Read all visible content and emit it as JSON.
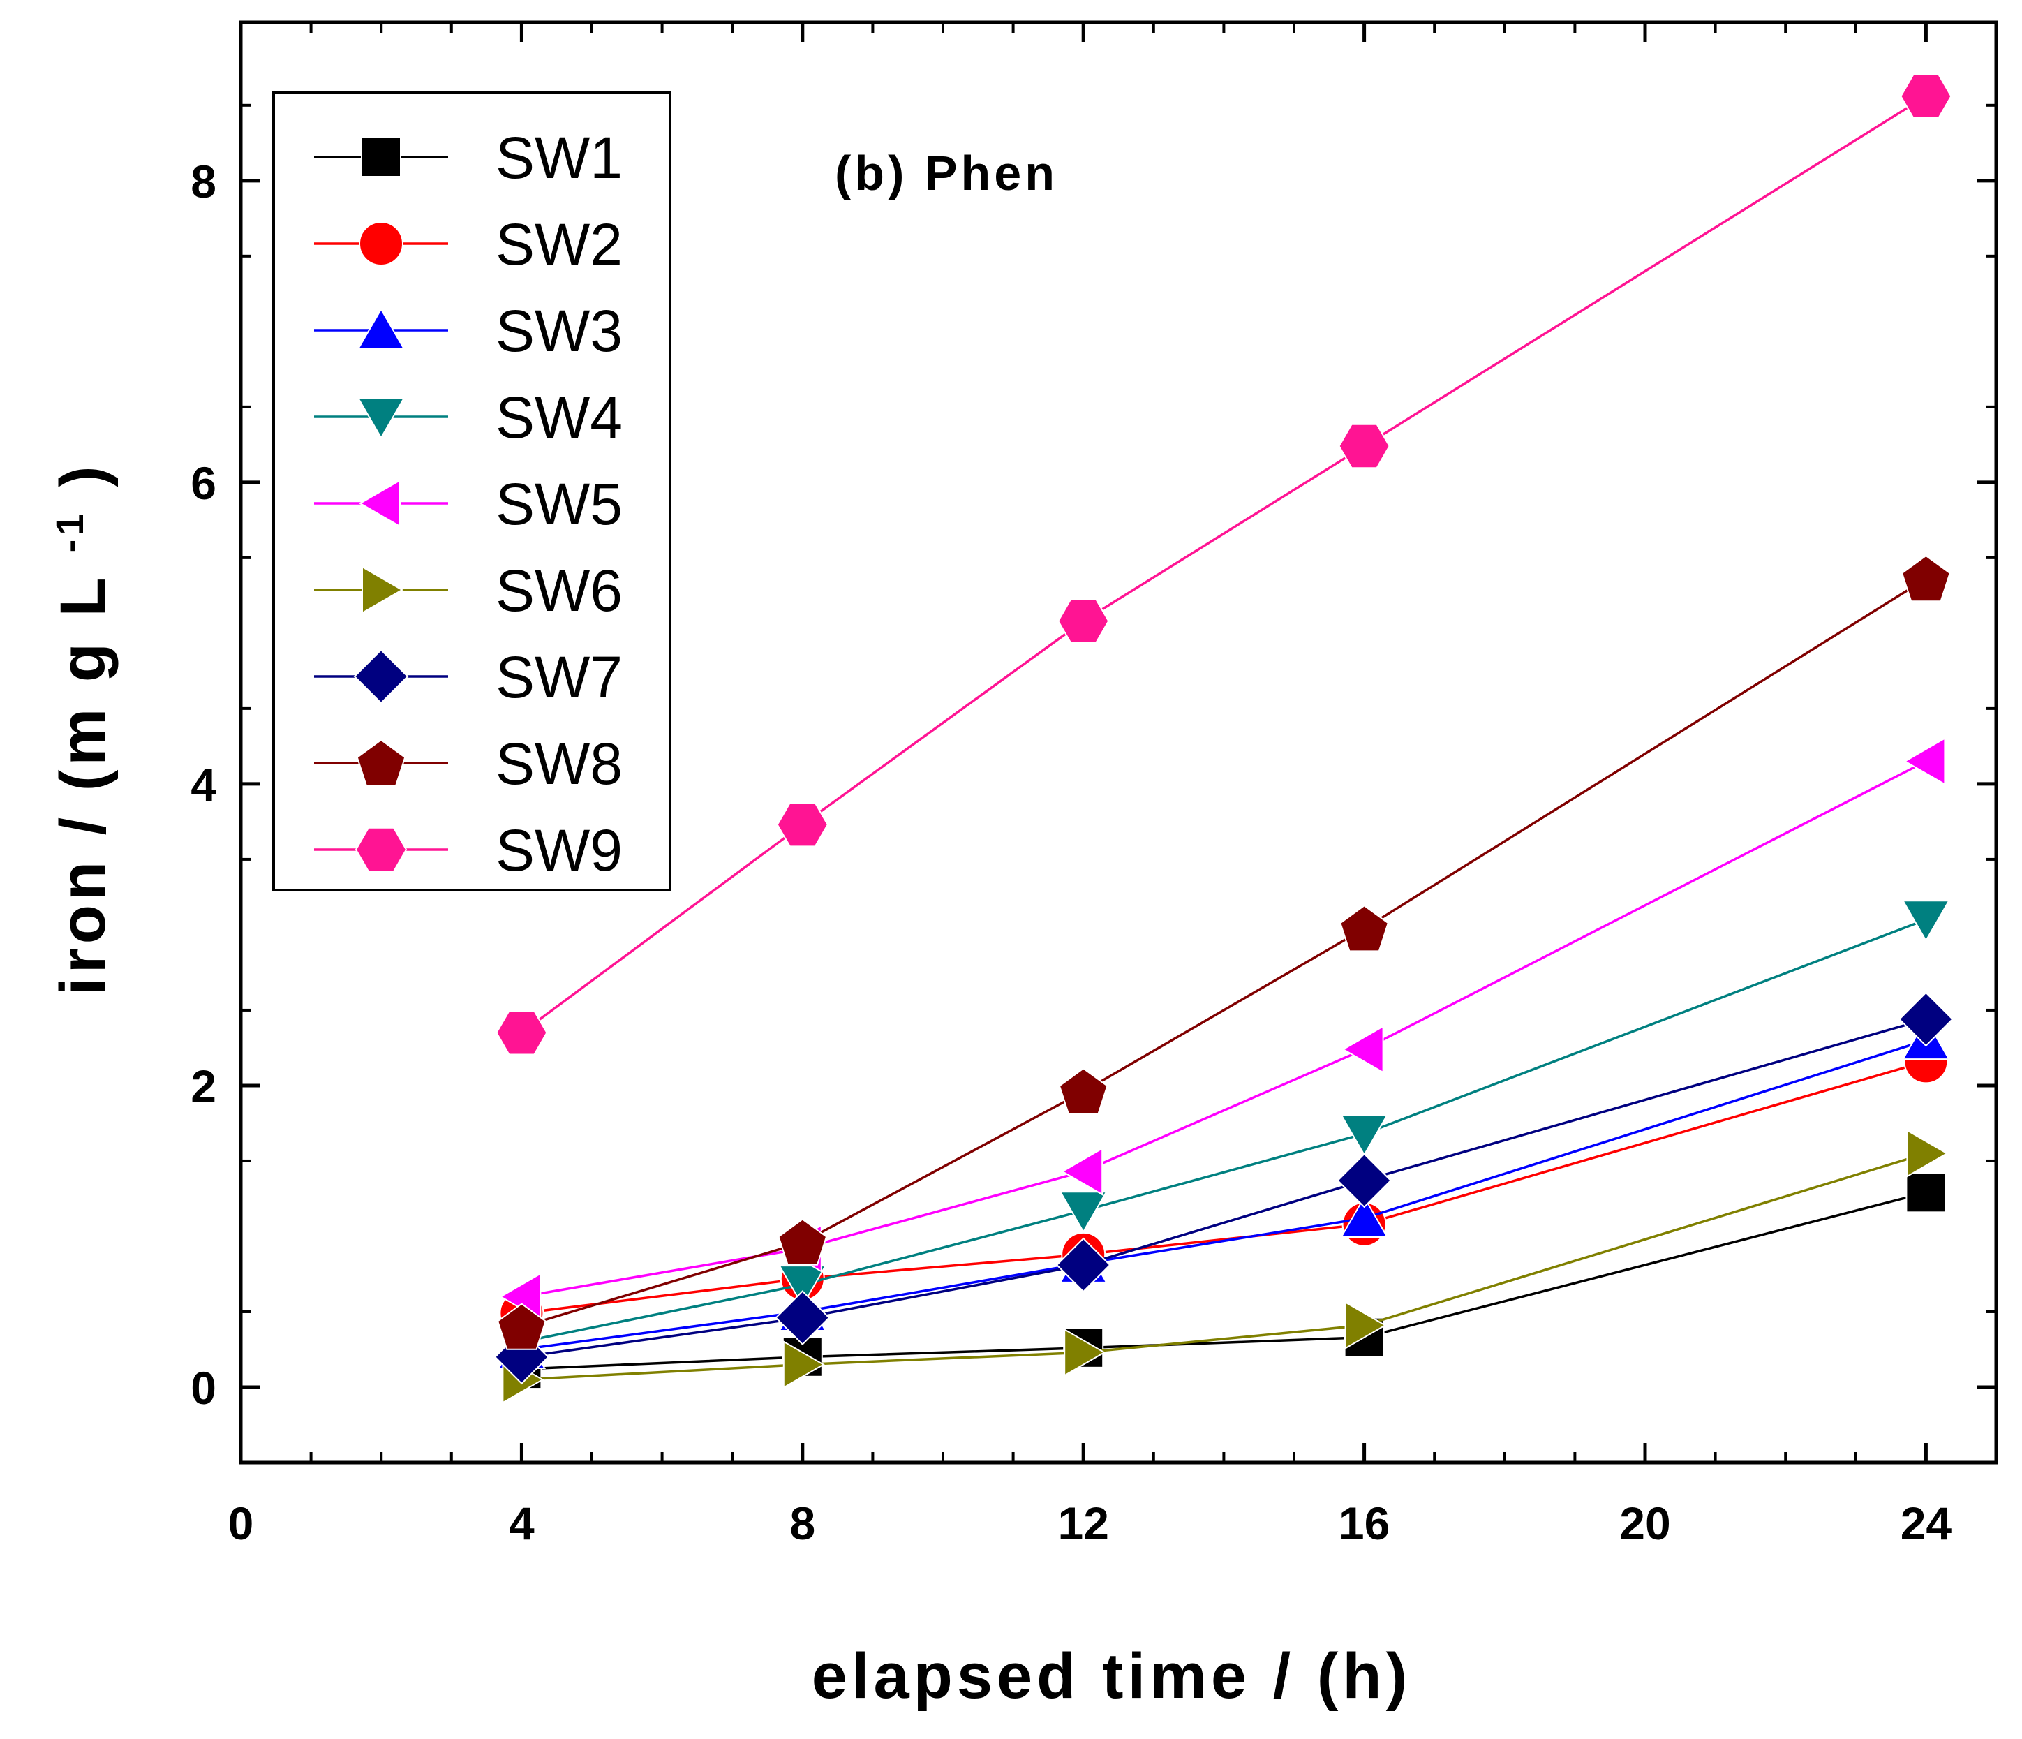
{
  "chart_data": {
    "type": "line",
    "title": "",
    "annotation": "(b) Phen",
    "xlabel": "elapsed time / (h)",
    "ylabel_main": "iron / (m g L",
    "ylabel_sup": "-1",
    "ylabel_close": ")",
    "xlim": [
      0,
      25
    ],
    "ylim": [
      -0.5,
      9.05
    ],
    "xticks": [
      0,
      4,
      8,
      12,
      16,
      20,
      24
    ],
    "xtick_labels": [
      "0",
      "4",
      "8",
      "12",
      "16",
      "20",
      "24"
    ],
    "yticks": [
      0,
      2,
      4,
      6,
      8
    ],
    "ytick_labels": [
      "0",
      "2",
      "4",
      "6",
      "8"
    ],
    "x": [
      4,
      8,
      12,
      16,
      24
    ],
    "legend_position": "top-left",
    "series": [
      {
        "name": "SW1",
        "color": "#000000",
        "marker": "square",
        "values": [
          0.12,
          0.2,
          0.26,
          0.33,
          1.29
        ]
      },
      {
        "name": "SW2",
        "color": "#ff0000",
        "marker": "circle",
        "values": [
          0.49,
          0.72,
          0.88,
          1.08,
          2.16
        ]
      },
      {
        "name": "SW3",
        "color": "#0000ff",
        "marker": "triangle-up",
        "values": [
          0.25,
          0.5,
          0.82,
          1.12,
          2.3
        ]
      },
      {
        "name": "SW4",
        "color": "#008080",
        "marker": "triangle-down",
        "values": [
          0.3,
          0.68,
          1.17,
          1.68,
          3.1
        ]
      },
      {
        "name": "SW5",
        "color": "#ff00ff",
        "marker": "triangle-left",
        "values": [
          0.6,
          0.92,
          1.43,
          2.24,
          4.15
        ]
      },
      {
        "name": "SW6",
        "color": "#808000",
        "marker": "triangle-right",
        "values": [
          0.05,
          0.15,
          0.23,
          0.41,
          1.55
        ]
      },
      {
        "name": "SW7",
        "color": "#000080",
        "marker": "diamond",
        "values": [
          0.2,
          0.46,
          0.81,
          1.37,
          2.44
        ]
      },
      {
        "name": "SW8",
        "color": "#800000",
        "marker": "pentagon",
        "values": [
          0.4,
          0.96,
          1.96,
          3.04,
          5.36
        ]
      },
      {
        "name": "SW9",
        "color": "#ff1493",
        "marker": "hexagon",
        "values": [
          2.35,
          3.73,
          5.08,
          6.24,
          8.56
        ]
      }
    ]
  }
}
